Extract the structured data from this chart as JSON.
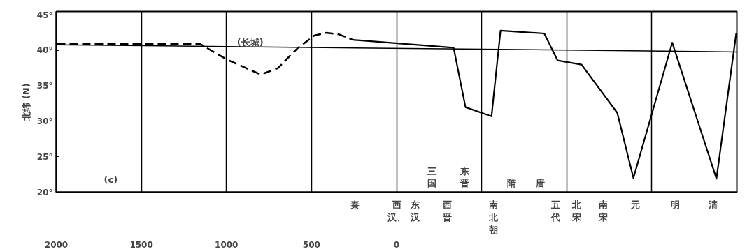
{
  "chart_data": {
    "type": "line",
    "ylabel": "北纬 (N)",
    "xlim": [
      -2000,
      2000
    ],
    "ylim": [
      20,
      45.5
    ],
    "xticks": [
      {
        "value": -2000,
        "label": "2000"
      },
      {
        "value": -1500,
        "label": "1500"
      },
      {
        "value": -1000,
        "label": "1000"
      },
      {
        "value": -500,
        "label": "500"
      },
      {
        "value": 0,
        "label": "0"
      },
      {
        "value": 500,
        "label": null
      },
      {
        "value": 1000,
        "label": null
      },
      {
        "value": 1500,
        "label": null
      }
    ],
    "yticks": [
      {
        "value": 20,
        "label": "20°"
      },
      {
        "value": 25,
        "label": "25°"
      },
      {
        "value": 30,
        "label": "30°"
      },
      {
        "value": 35,
        "label": "35°"
      },
      {
        "value": 40,
        "label": "40°"
      },
      {
        "value": 45,
        "label": "45°"
      }
    ],
    "grid": "x",
    "marker": "none",
    "series": [
      {
        "color": "#000000",
        "line_style": "solid",
        "x": [
          -2000,
          2000
        ],
        "values": [
          40.8,
          39.8
        ]
      },
      {
        "color": "#000000",
        "line_style": "dashed",
        "x": [
          -1996,
          -1153,
          -996,
          -798,
          -698,
          -583,
          -484,
          -413,
          -343,
          -256
        ],
        "values": [
          40.9,
          40.9,
          38.7,
          36.6,
          37.5,
          40.3,
          42.1,
          42.5,
          42.3,
          41.5
        ]
      },
      {
        "color": "#000000",
        "line_style": "solid",
        "x": [
          -256,
          335,
          405,
          558,
          611,
          868,
          946,
          1087,
          1297,
          1392,
          1620,
          1880,
          1996
        ],
        "values": [
          41.5,
          40.4,
          32.0,
          30.7,
          42.8,
          42.4,
          38.6,
          38.0,
          31.2,
          22.0,
          41.1,
          21.9,
          42.4
        ]
      }
    ],
    "annotations": [
      "(c)",
      "(长城)",
      "秦",
      "西汉、",
      "东汉",
      "西晋",
      "南北朝",
      "五代",
      "北宋",
      "南宋",
      "元",
      "明",
      "清",
      "三国",
      "东晋",
      "隋",
      "唐"
    ]
  }
}
